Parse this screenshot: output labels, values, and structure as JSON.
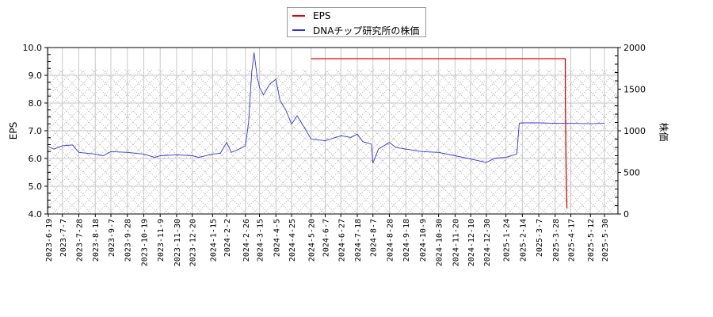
{
  "legend": {
    "items": [
      {
        "label": "EPS",
        "color": "#e00000"
      },
      {
        "label": "DNAチップ研究所の株価",
        "color": "#3333dd"
      }
    ]
  },
  "axes": {
    "left_label": "EPS",
    "right_label": "株価",
    "left_ticks": [
      "10.0",
      "9.0",
      "8.0",
      "7.0",
      "6.0",
      "5.0",
      "4.0"
    ],
    "right_ticks": [
      "2000",
      "1500",
      "1000",
      "500",
      "0"
    ]
  },
  "chart_data": {
    "type": "line",
    "title": "",
    "xlabel": "",
    "ylabel": "EPS",
    "y2label": "株価",
    "ylim": [
      4.0,
      10.0
    ],
    "y2lim": [
      0,
      2000
    ],
    "grid": true,
    "legend_position": "top-center",
    "x_tick_labels": [
      "2023-6-19",
      "2023-7-7",
      "2023-7-28",
      "2023-8-18",
      "2023-9-7",
      "2023-9-28",
      "2023-10-19",
      "2023-11-9",
      "2023-11-30",
      "2023-12-20",
      "2024-1-15",
      "2024-2-2",
      "2024-2-26",
      "2024-3-15",
      "2024-4-5",
      "2024-4-25",
      "2024-5-20",
      "2024-6-7",
      "2024-6-27",
      "2024-7-18",
      "2024-8-7",
      "2024-8-28",
      "2024-9-18",
      "2024-10-9",
      "2024-10-30",
      "2024-11-20",
      "2024-12-10",
      "2024-12-30",
      "2025-1-24",
      "2025-2-14",
      "2025-3-7",
      "2025-3-28",
      "2025-4-17",
      "2025-5-12",
      "2025-5-30"
    ],
    "series": [
      {
        "name": "EPS",
        "axis": "left",
        "color": "#e00000",
        "points": [
          {
            "x": "2024-5-20",
            "y": 9.6
          },
          {
            "x": "2025-4-10",
            "y": 9.6
          },
          {
            "x": "2025-4-10",
            "y": 8.2
          },
          {
            "x": "2025-4-11",
            "y": 5.6
          },
          {
            "x": "2025-4-12",
            "y": 4.2
          }
        ]
      },
      {
        "name": "DNAチップ研究所の株価",
        "axis": "right",
        "color": "#3333dd",
        "points": [
          {
            "x": "2023-6-19",
            "y": 810
          },
          {
            "x": "2023-6-26",
            "y": 780
          },
          {
            "x": "2023-7-7",
            "y": 820
          },
          {
            "x": "2023-7-20",
            "y": 830
          },
          {
            "x": "2023-7-28",
            "y": 740
          },
          {
            "x": "2023-8-18",
            "y": 720
          },
          {
            "x": "2023-8-28",
            "y": 700
          },
          {
            "x": "2023-9-7",
            "y": 750
          },
          {
            "x": "2023-9-28",
            "y": 740
          },
          {
            "x": "2023-10-19",
            "y": 720
          },
          {
            "x": "2023-11-2",
            "y": 680
          },
          {
            "x": "2023-11-9",
            "y": 700
          },
          {
            "x": "2023-11-30",
            "y": 710
          },
          {
            "x": "2023-12-20",
            "y": 700
          },
          {
            "x": "2023-12-28",
            "y": 680
          },
          {
            "x": "2024-1-15",
            "y": 720
          },
          {
            "x": "2024-1-25",
            "y": 730
          },
          {
            "x": "2024-2-2",
            "y": 860
          },
          {
            "x": "2024-2-8",
            "y": 740
          },
          {
            "x": "2024-2-20",
            "y": 790
          },
          {
            "x": "2024-2-26",
            "y": 820
          },
          {
            "x": "2024-3-1",
            "y": 1100
          },
          {
            "x": "2024-3-5",
            "y": 1700
          },
          {
            "x": "2024-3-8",
            "y": 1940
          },
          {
            "x": "2024-3-12",
            "y": 1650
          },
          {
            "x": "2024-3-15",
            "y": 1520
          },
          {
            "x": "2024-3-20",
            "y": 1430
          },
          {
            "x": "2024-3-28",
            "y": 1560
          },
          {
            "x": "2024-4-5",
            "y": 1620
          },
          {
            "x": "2024-4-10",
            "y": 1370
          },
          {
            "x": "2024-4-18",
            "y": 1240
          },
          {
            "x": "2024-4-25",
            "y": 1080
          },
          {
            "x": "2024-5-2",
            "y": 1180
          },
          {
            "x": "2024-5-10",
            "y": 1060
          },
          {
            "x": "2024-5-20",
            "y": 900
          },
          {
            "x": "2024-6-7",
            "y": 880
          },
          {
            "x": "2024-6-27",
            "y": 940
          },
          {
            "x": "2024-7-10",
            "y": 920
          },
          {
            "x": "2024-7-18",
            "y": 960
          },
          {
            "x": "2024-7-25",
            "y": 870
          },
          {
            "x": "2024-8-5",
            "y": 840
          },
          {
            "x": "2024-8-7",
            "y": 610
          },
          {
            "x": "2024-8-14",
            "y": 780
          },
          {
            "x": "2024-8-28",
            "y": 860
          },
          {
            "x": "2024-9-5",
            "y": 800
          },
          {
            "x": "2024-9-18",
            "y": 780
          },
          {
            "x": "2024-10-9",
            "y": 750
          },
          {
            "x": "2024-10-30",
            "y": 740
          },
          {
            "x": "2024-11-20",
            "y": 700
          },
          {
            "x": "2024-12-10",
            "y": 660
          },
          {
            "x": "2024-12-30",
            "y": 620
          },
          {
            "x": "2025-1-10",
            "y": 670
          },
          {
            "x": "2025-1-24",
            "y": 680
          },
          {
            "x": "2025-2-7",
            "y": 720
          },
          {
            "x": "2025-2-10",
            "y": 1090
          },
          {
            "x": "2025-2-14",
            "y": 1095
          },
          {
            "x": "2025-3-7",
            "y": 1095
          },
          {
            "x": "2025-3-28",
            "y": 1090
          },
          {
            "x": "2025-4-17",
            "y": 1090
          },
          {
            "x": "2025-5-12",
            "y": 1085
          },
          {
            "x": "2025-5-30",
            "y": 1090
          }
        ]
      }
    ]
  }
}
